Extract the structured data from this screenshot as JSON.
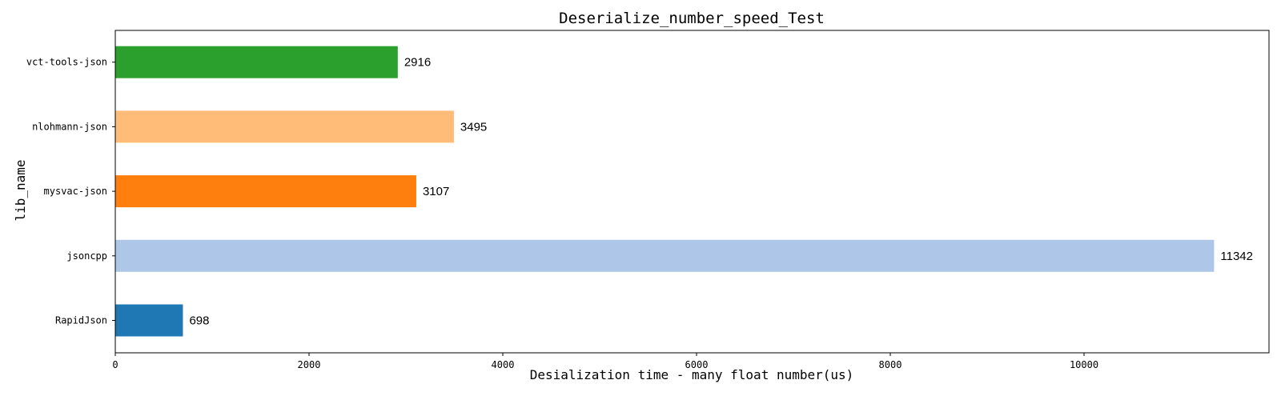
{
  "chart_data": {
    "type": "bar",
    "orientation": "horizontal",
    "title": "Deserialize_number_speed_Test",
    "xlabel": "Desialization time - many float number(us)",
    "ylabel": "lib_name",
    "categories": [
      "RapidJson",
      "jsoncpp",
      "mysvac-json",
      "nlohmann-json",
      "vct-tools-json"
    ],
    "values": [
      698,
      11342,
      3107,
      3495,
      2916
    ],
    "colors": [
      "#1f77b4",
      "#aec7e8",
      "#ff7f0e",
      "#ffbb78",
      "#2ca02c"
    ],
    "xticks": [
      0,
      2000,
      4000,
      6000,
      8000,
      10000
    ],
    "xlim": [
      0,
      11909
    ],
    "grid": false,
    "legend": "none"
  }
}
